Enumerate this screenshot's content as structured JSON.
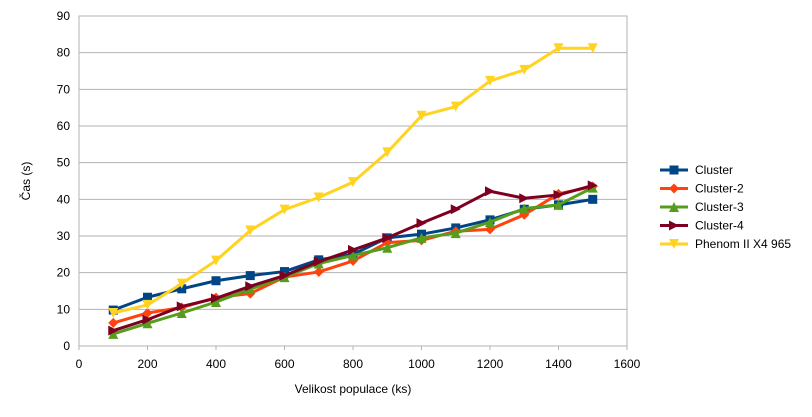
{
  "chart_data": {
    "type": "line",
    "xlabel": "Velikost populace (ks)",
    "ylabel": "Čas (s)",
    "xlim": [
      0,
      1600
    ],
    "ylim": [
      0,
      90
    ],
    "xticks": [
      0,
      200,
      400,
      600,
      800,
      1000,
      1200,
      1400,
      1600
    ],
    "yticks": [
      0,
      10,
      20,
      30,
      40,
      50,
      60,
      70,
      80,
      90
    ],
    "grid": "horizontal",
    "legend_position": "right",
    "x": [
      100,
      200,
      300,
      400,
      500,
      600,
      700,
      800,
      900,
      1000,
      1100,
      1200,
      1300,
      1400,
      1500
    ],
    "series": [
      {
        "name": "Cluster",
        "color": "#004586",
        "marker": "square",
        "values": [
          9.8,
          13.3,
          15.6,
          17.8,
          19.2,
          20.3,
          23.5,
          25.0,
          29.5,
          30.5,
          32.2,
          34.4,
          37.3,
          38.5,
          40.0
        ]
      },
      {
        "name": "Cluster-2",
        "color": "#ff420e",
        "marker": "diamond",
        "values": [
          6.3,
          9.0,
          10.5,
          13.2,
          14.3,
          18.8,
          20.2,
          23.2,
          28.2,
          28.8,
          31.3,
          31.8,
          35.8,
          41.5,
          43.5
        ]
      },
      {
        "name": "Cluster-3",
        "color": "#579d1c",
        "marker": "triangle-up",
        "values": [
          3.3,
          6.2,
          9.0,
          12.0,
          15.5,
          18.8,
          22.5,
          24.7,
          26.8,
          29.5,
          30.8,
          33.8,
          37.5,
          38.5,
          43.2
        ]
      },
      {
        "name": "Cluster-4",
        "color": "#7e0021",
        "marker": "triangle-right",
        "values": [
          4.2,
          7.2,
          10.8,
          13.0,
          16.3,
          19.2,
          23.0,
          26.2,
          29.5,
          33.5,
          37.3,
          42.2,
          40.3,
          41.2,
          43.8
        ]
      },
      {
        "name": "Phenom II X4 965",
        "color": "#ffd320",
        "marker": "triangle-down",
        "values": [
          9.0,
          11.2,
          17.0,
          23.3,
          31.5,
          37.2,
          40.5,
          44.7,
          52.8,
          62.8,
          65.3,
          72.3,
          75.3,
          81.2,
          81.2
        ]
      }
    ]
  }
}
